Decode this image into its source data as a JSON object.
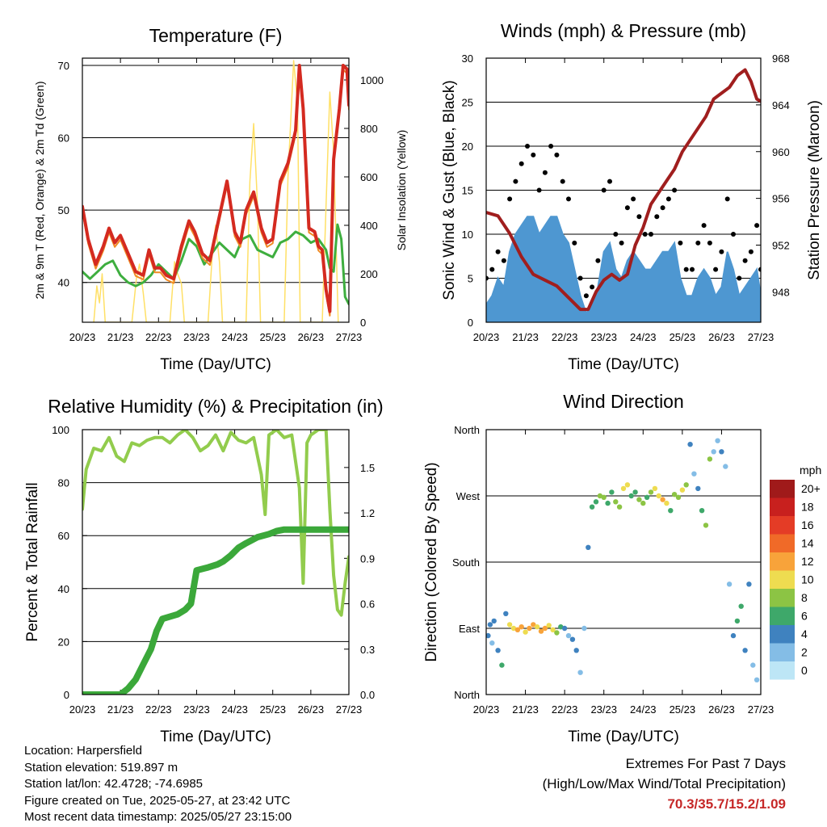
{
  "time_ticks": [
    "20/23",
    "21/23",
    "22/23",
    "23/23",
    "24/23",
    "25/23",
    "26/23",
    "27/23"
  ],
  "colors": {
    "temp_2m": "#d42a20",
    "temp_9m": "#f08a24",
    "dewpoint": "#3eae3f",
    "solar": "#ffe066",
    "wind": "#4e97d1",
    "gust": "#000000",
    "pressure": "#a01e1e",
    "rh": "#92cc4d",
    "precip": "#3ba83a"
  },
  "info": {
    "location": "Location: Harpersfield",
    "elevation": "Station elevation: 519.897 m",
    "latlon": "Station lat/lon: 42.4728; -74.6985",
    "created": "Figure created on Tue, 2025-05-27, at 23:42 UTC",
    "recent": "Most recent data timestamp: 2025/05/27 23:15:00"
  },
  "extremes": {
    "title": "Extremes For Past 7 Days",
    "subtitle": "(High/Low/Max Wind/Total Precipitation)",
    "values": "70.3/35.7/15.2/1.09"
  },
  "chart_data": [
    {
      "type": "line",
      "title": "Temperature (F)",
      "xlabel": "Time (Day/UTC)",
      "ylabel": "2m & 9m T (Red, Orange) & 2m Td (Green)",
      "y2label": "Solar Insolation (Yellow)",
      "xlim": [
        0,
        7
      ],
      "ylim": [
        34.5,
        71
      ],
      "y2lim": [
        0,
        1090
      ],
      "yticks": [
        40,
        50,
        60,
        70
      ],
      "y2ticks": [
        0,
        200,
        400,
        600,
        800,
        1000
      ],
      "grid": true,
      "series": [
        {
          "name": "2m T",
          "x": [
            0,
            0.15,
            0.35,
            0.55,
            0.7,
            0.85,
            1.0,
            1.2,
            1.4,
            1.6,
            1.75,
            1.9,
            2.05,
            2.2,
            2.4,
            2.6,
            2.8,
            2.95,
            3.15,
            3.35,
            3.55,
            3.8,
            4.0,
            4.15,
            4.3,
            4.5,
            4.7,
            4.85,
            5.0,
            5.2,
            5.4,
            5.6,
            5.7,
            5.8,
            5.95,
            6.1,
            6.2,
            6.3,
            6.4,
            6.5,
            6.6,
            6.75,
            6.85,
            6.95,
            7.0
          ],
          "values": [
            50.5,
            46,
            42.5,
            45,
            47.5,
            45.5,
            46.5,
            44,
            41.5,
            41,
            44.5,
            42,
            42,
            41,
            40.5,
            45,
            48.5,
            47,
            44,
            43,
            48,
            54,
            47,
            45.5,
            50,
            52.5,
            47.5,
            45.5,
            46,
            54,
            56.5,
            61,
            70,
            64,
            47.5,
            47,
            45,
            44.5,
            39,
            36,
            57,
            64,
            70,
            69.5,
            64.5
          ]
        },
        {
          "name": "2m Td",
          "x": [
            0,
            0.2,
            0.4,
            0.6,
            0.8,
            1.0,
            1.2,
            1.4,
            1.6,
            1.8,
            2.0,
            2.2,
            2.4,
            2.6,
            2.8,
            3.0,
            3.2,
            3.4,
            3.6,
            3.8,
            4.0,
            4.2,
            4.4,
            4.6,
            4.8,
            5.0,
            5.2,
            5.4,
            5.6,
            5.8,
            6.0,
            6.2,
            6.4,
            6.5,
            6.6,
            6.7,
            6.8,
            6.9,
            7.0
          ],
          "values": [
            41.5,
            40.5,
            41.5,
            42.5,
            43,
            41,
            40,
            39.5,
            40,
            41,
            42.5,
            41.5,
            40.5,
            43,
            46,
            45,
            42.5,
            44,
            45.5,
            44.5,
            43.5,
            46,
            46.5,
            44.5,
            44,
            43.5,
            45.5,
            46,
            47,
            46.5,
            45.5,
            46,
            44.5,
            42,
            41.5,
            48,
            46,
            38,
            37
          ]
        },
        {
          "name": "Solar",
          "x": [
            0.3,
            0.38,
            0.45,
            0.52,
            0.6,
            1.3,
            1.42,
            1.5,
            1.6,
            1.68,
            2.3,
            2.42,
            2.5,
            2.6,
            2.68,
            3.3,
            3.42,
            3.5,
            3.6,
            3.68,
            4.3,
            4.4,
            4.5,
            4.6,
            4.68,
            5.3,
            5.4,
            5.55,
            5.65,
            5.72,
            6.3,
            6.4,
            6.5,
            6.6,
            6.72
          ],
          "values": [
            0,
            150,
            80,
            200,
            0,
            0,
            180,
            240,
            120,
            0,
            0,
            250,
            200,
            160,
            0,
            0,
            300,
            400,
            250,
            0,
            0,
            580,
            820,
            480,
            0,
            0,
            600,
            1080,
            900,
            0,
            0,
            480,
            950,
            700,
            0
          ]
        }
      ]
    },
    {
      "type": "line",
      "title": "Winds (mph) & Pressure (mb)",
      "xlabel": "Time (Day/UTC)",
      "ylabel": "Sonic Wind & Gust (Blue, Black)",
      "y2label": "Station Pressure (Maroon)",
      "xlim": [
        0,
        7
      ],
      "ylim": [
        0,
        30
      ],
      "y2lim": [
        945.4,
        968
      ],
      "yticks": [
        0,
        5,
        10,
        15,
        20,
        25,
        30
      ],
      "y2ticks": [
        948,
        952,
        956,
        960,
        964,
        968
      ],
      "grid": true,
      "series": [
        {
          "name": "Wind",
          "x": [
            0,
            0.15,
            0.3,
            0.45,
            0.6,
            0.75,
            0.9,
            1.05,
            1.2,
            1.35,
            1.5,
            1.65,
            1.8,
            1.95,
            2.1,
            2.25,
            2.4,
            2.55,
            2.7,
            2.85,
            3.0,
            3.15,
            3.3,
            3.45,
            3.6,
            3.75,
            3.9,
            4.05,
            4.2,
            4.35,
            4.5,
            4.65,
            4.8,
            4.95,
            5.1,
            5.25,
            5.4,
            5.55,
            5.7,
            5.85,
            6.0,
            6.15,
            6.3,
            6.45,
            6.6,
            6.75,
            6.9,
            7.0
          ],
          "values": [
            2,
            3,
            5,
            4,
            8,
            10,
            11,
            12,
            12,
            10,
            11,
            12,
            12,
            10,
            9,
            6,
            3,
            1,
            2,
            4,
            8,
            9,
            6,
            5,
            7,
            8,
            7,
            6,
            6,
            7,
            8,
            8,
            9,
            5,
            3,
            3,
            5,
            6,
            5,
            3,
            4,
            8,
            6,
            3,
            4,
            5,
            6,
            3
          ]
        },
        {
          "name": "Gust",
          "x": [
            0,
            0.15,
            0.3,
            0.45,
            0.6,
            0.75,
            0.9,
            1.05,
            1.2,
            1.35,
            1.5,
            1.65,
            1.8,
            1.95,
            2.1,
            2.25,
            2.4,
            2.55,
            2.7,
            2.85,
            3.0,
            3.15,
            3.3,
            3.45,
            3.6,
            3.75,
            3.9,
            4.05,
            4.2,
            4.35,
            4.5,
            4.65,
            4.8,
            4.95,
            5.1,
            5.25,
            5.4,
            5.55,
            5.7,
            5.85,
            6.0,
            6.15,
            6.3,
            6.45,
            6.6,
            6.75,
            6.9,
            7.0
          ],
          "values": [
            5,
            6,
            8,
            7,
            14,
            16,
            18,
            20,
            19,
            15,
            17,
            20,
            19,
            16,
            14,
            9,
            5,
            3,
            4,
            7,
            15,
            16,
            10,
            9,
            13,
            14,
            12,
            10,
            10,
            12,
            13,
            14,
            15,
            9,
            6,
            6,
            9,
            11,
            9,
            6,
            8,
            14,
            10,
            5,
            7,
            8,
            11,
            6
          ]
        },
        {
          "name": "Pressure",
          "x": [
            0,
            0.3,
            0.6,
            0.9,
            1.2,
            1.5,
            1.8,
            2.1,
            2.4,
            2.6,
            2.8,
            3.0,
            3.2,
            3.4,
            3.6,
            3.8,
            4.0,
            4.2,
            4.4,
            4.6,
            4.8,
            5.0,
            5.2,
            5.4,
            5.6,
            5.8,
            6.0,
            6.2,
            6.4,
            6.6,
            6.75,
            6.9,
            7.0
          ],
          "values": [
            954.8,
            954.5,
            953,
            951,
            949.5,
            949,
            948.5,
            947.5,
            946.5,
            946.5,
            948,
            949,
            949.5,
            949,
            949.5,
            952,
            953.5,
            955.5,
            956.5,
            957.5,
            958.5,
            960,
            961,
            962,
            963,
            964.5,
            965,
            965.5,
            966.5,
            967,
            966,
            964.5,
            964.3
          ]
        }
      ]
    },
    {
      "type": "line",
      "title": "Relative Humidity (%) & Precipitation (in)",
      "xlabel": "Time (Day/UTC)",
      "ylabel": "Percent & Total Rainfall",
      "xlim": [
        0,
        7
      ],
      "ylim": [
        0,
        100
      ],
      "y2lim": [
        0,
        1.75
      ],
      "yticks": [
        0,
        20,
        40,
        60,
        80,
        100
      ],
      "y2ticks": [
        0.0,
        0.3,
        0.6,
        0.9,
        1.2,
        1.5
      ],
      "grid": true,
      "series": [
        {
          "name": "RH",
          "x": [
            0,
            0.1,
            0.3,
            0.5,
            0.7,
            0.9,
            1.1,
            1.3,
            1.5,
            1.7,
            1.9,
            2.1,
            2.3,
            2.5,
            2.7,
            2.9,
            3.1,
            3.3,
            3.5,
            3.7,
            3.9,
            4.1,
            4.3,
            4.5,
            4.7,
            4.8,
            4.9,
            5.1,
            5.3,
            5.5,
            5.7,
            5.8,
            5.9,
            6.0,
            6.2,
            6.4,
            6.5,
            6.6,
            6.7,
            6.8,
            6.9,
            7.0
          ],
          "values": [
            70,
            85,
            93,
            92,
            97,
            90,
            88,
            95,
            94,
            96,
            97,
            97,
            95,
            98,
            100,
            97,
            92,
            94,
            98,
            92,
            99,
            96,
            95,
            97,
            83,
            68,
            98,
            100,
            97,
            98,
            78,
            42,
            95,
            98,
            100,
            100,
            70,
            45,
            32,
            30,
            42,
            52
          ]
        },
        {
          "name": "Total Precip",
          "x": [
            0,
            0.5,
            1.0,
            1.2,
            1.4,
            1.6,
            1.8,
            1.95,
            2.1,
            2.5,
            2.7,
            2.85,
            3.0,
            3.3,
            3.55,
            3.7,
            3.9,
            4.1,
            4.3,
            4.6,
            4.9,
            5.1,
            5.3,
            5.6,
            5.9,
            6.2,
            6.5,
            6.8,
            7.0
          ],
          "values": [
            0,
            0,
            0,
            0.04,
            0.1,
            0.2,
            0.3,
            0.42,
            0.5,
            0.53,
            0.56,
            0.6,
            0.82,
            0.84,
            0.86,
            0.88,
            0.92,
            0.97,
            1.0,
            1.04,
            1.06,
            1.08,
            1.09,
            1.09,
            1.09,
            1.09,
            1.09,
            1.09,
            1.09
          ]
        }
      ]
    },
    {
      "type": "scatter",
      "title": "Wind Direction",
      "xlabel": "Time (Day/UTC)",
      "ylabel": "Direction (Colored By Speed)",
      "xlim": [
        0,
        7
      ],
      "ylim": [
        0,
        360
      ],
      "yticklabels": [
        "North",
        "East",
        "South",
        "West",
        "North"
      ],
      "grid": true,
      "legend_title": "mph",
      "legend_labels": [
        "20+",
        "18",
        "16",
        "14",
        "12",
        "10",
        "8",
        "6",
        "4",
        "2",
        "0"
      ],
      "legend_colors": [
        "#a01a1a",
        "#c8201e",
        "#e43c26",
        "#f06a28",
        "#f8a33a",
        "#eedc50",
        "#8cc444",
        "#3ea86a",
        "#3f82bf",
        "#84bde6",
        "#bde6f6"
      ],
      "legend_position": "right",
      "series": [
        {
          "name": "Direction",
          "x": [
            0.05,
            0.1,
            0.15,
            0.2,
            0.3,
            0.4,
            0.5,
            0.6,
            0.7,
            0.8,
            0.9,
            1.0,
            1.1,
            1.2,
            1.3,
            1.4,
            1.5,
            1.6,
            1.7,
            1.8,
            1.9,
            2.0,
            2.1,
            2.2,
            2.3,
            2.4,
            2.5,
            2.6,
            2.7,
            2.8,
            2.9,
            3.0,
            3.1,
            3.2,
            3.3,
            3.4,
            3.5,
            3.6,
            3.7,
            3.8,
            3.9,
            4.0,
            4.1,
            4.2,
            4.3,
            4.4,
            4.5,
            4.6,
            4.7,
            4.8,
            4.9,
            5.0,
            5.1,
            5.2,
            5.3,
            5.4,
            5.5,
            5.6,
            5.7,
            5.8,
            5.9,
            6.0,
            6.1,
            6.2,
            6.3,
            6.4,
            6.5,
            6.6,
            6.7,
            6.8,
            6.9
          ],
          "values": [
            80,
            95,
            70,
            100,
            60,
            40,
            110,
            95,
            90,
            88,
            92,
            85,
            90,
            95,
            92,
            86,
            90,
            94,
            88,
            84,
            92,
            90,
            80,
            75,
            60,
            30,
            90,
            200,
            255,
            262,
            270,
            268,
            260,
            275,
            262,
            255,
            280,
            285,
            270,
            275,
            265,
            260,
            268,
            275,
            280,
            270,
            265,
            260,
            250,
            272,
            268,
            278,
            285,
            340,
            300,
            280,
            250,
            230,
            320,
            330,
            345,
            330,
            310,
            150,
            80,
            100,
            120,
            60,
            150,
            40,
            20
          ],
          "speed": [
            3,
            4,
            2,
            3,
            4,
            5,
            3,
            9,
            10,
            12,
            11,
            10,
            12,
            11,
            10,
            11,
            12,
            10,
            9,
            8,
            6,
            3,
            2,
            3,
            4,
            2,
            1,
            3,
            5,
            6,
            7,
            8,
            6,
            5,
            7,
            8,
            9,
            10,
            6,
            5,
            8,
            7,
            6,
            8,
            9,
            10,
            11,
            9,
            6,
            7,
            8,
            9,
            8,
            4,
            2,
            3,
            6,
            8,
            7,
            2,
            1,
            3,
            2,
            1,
            3,
            6,
            5,
            4,
            3,
            2,
            1
          ]
        }
      ]
    }
  ]
}
